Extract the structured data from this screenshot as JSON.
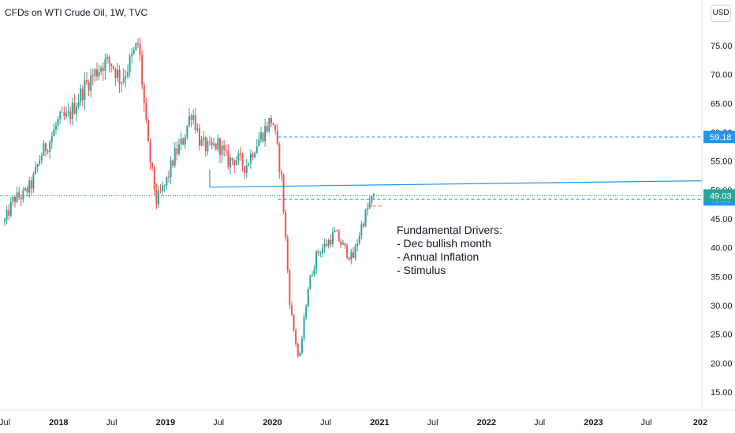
{
  "header": {
    "title": "CFDs on WTI Crude Oil, 1W, TVC",
    "currency": "USD"
  },
  "annotation": {
    "heading": "Fundamental Drivers:",
    "lines": [
      "- Dec bullish month",
      "- Annual Inflation",
      "- Stimulus"
    ]
  },
  "chart_data": {
    "type": "candlestick",
    "title": "CFDs on WTI Crude Oil, 1W, TVC",
    "ylim": [
      12,
      79
    ],
    "y_ticks": [
      15,
      20,
      25,
      30,
      35,
      40,
      45,
      50,
      55,
      60,
      65,
      70,
      75
    ],
    "y_tick_labels": [
      "15.00",
      "20.00",
      "25.00",
      "30.00",
      "35.00",
      "40.00",
      "45.00",
      "50.00",
      "55.00",
      "60.00",
      "65.00",
      "70.00",
      "75.00"
    ],
    "x_ticks": [
      {
        "label": "Jul",
        "date": "2017-07-01",
        "year": false
      },
      {
        "label": "2018",
        "date": "2018-01-01",
        "year": true
      },
      {
        "label": "Jul",
        "date": "2018-07-01",
        "year": false
      },
      {
        "label": "2019",
        "date": "2019-01-01",
        "year": true
      },
      {
        "label": "Jul",
        "date": "2019-07-01",
        "year": false
      },
      {
        "label": "2020",
        "date": "2020-01-01",
        "year": true
      },
      {
        "label": "Jul",
        "date": "2020-07-01",
        "year": false
      },
      {
        "label": "2021",
        "date": "2021-01-01",
        "year": true
      },
      {
        "label": "Jul",
        "date": "2021-07-01",
        "year": false
      },
      {
        "label": "2022",
        "date": "2022-01-01",
        "year": true
      },
      {
        "label": "Jul",
        "date": "2022-07-01",
        "year": false
      },
      {
        "label": "2023",
        "date": "2023-01-01",
        "year": true
      },
      {
        "label": "Jul",
        "date": "2023-07-01",
        "year": false
      },
      {
        "label": "202",
        "date": "2024-01-01",
        "year": true
      }
    ],
    "x_range": [
      "2017-07-01",
      "2024-01-01"
    ],
    "price_points": [
      [
        "2017-07-01",
        44.5
      ],
      [
        "2017-08-01",
        48.5
      ],
      [
        "2017-09-01",
        49.0
      ],
      [
        "2017-10-01",
        51.0
      ],
      [
        "2017-11-01",
        56.0
      ],
      [
        "2017-12-01",
        58.5
      ],
      [
        "2018-01-01",
        62.0
      ],
      [
        "2018-02-01",
        62.5
      ],
      [
        "2018-03-01",
        65.0
      ],
      [
        "2018-04-01",
        68.0
      ],
      [
        "2018-05-01",
        70.0
      ],
      [
        "2018-06-01",
        72.0
      ],
      [
        "2018-07-01",
        72.0
      ],
      [
        "2018-08-01",
        69.0
      ],
      [
        "2018-09-01",
        72.0
      ],
      [
        "2018-10-01",
        75.5
      ],
      [
        "2018-11-01",
        58.0
      ],
      [
        "2018-12-01",
        48.0
      ],
      [
        "2019-01-01",
        51.0
      ],
      [
        "2019-02-01",
        56.0
      ],
      [
        "2019-03-01",
        58.5
      ],
      [
        "2019-04-01",
        64.0
      ],
      [
        "2019-05-01",
        58.0
      ],
      [
        "2019-06-01",
        57.0
      ],
      [
        "2019-07-01",
        58.0
      ],
      [
        "2019-08-01",
        55.0
      ],
      [
        "2019-09-01",
        55.5
      ],
      [
        "2019-10-01",
        54.0
      ],
      [
        "2019-11-01",
        57.5
      ],
      [
        "2019-12-01",
        60.0
      ],
      [
        "2020-01-01",
        62.5
      ],
      [
        "2020-02-01",
        52.0
      ],
      [
        "2020-03-01",
        30.0
      ],
      [
        "2020-04-01",
        20.0
      ],
      [
        "2020-05-01",
        33.0
      ],
      [
        "2020-06-01",
        39.0
      ],
      [
        "2020-07-01",
        40.5
      ],
      [
        "2020-08-01",
        42.5
      ],
      [
        "2020-09-01",
        40.0
      ],
      [
        "2020-10-01",
        38.0
      ],
      [
        "2020-11-01",
        44.0
      ],
      [
        "2020-12-01",
        48.0
      ],
      [
        "2020-12-18",
        49.03
      ]
    ],
    "bullish_color": "#26a69a",
    "bearish_color": "#ef5350",
    "last_price": 49.03,
    "levels": [
      {
        "label": "59.18",
        "value": 59.18,
        "color": "#2196f3",
        "style": "dashed"
      },
      {
        "label": "48.39",
        "value": 48.39,
        "color": "#2196f3",
        "style": "dashed"
      },
      {
        "label": "49.03",
        "value": 49.03,
        "color": "#26a69a",
        "style": "dotted"
      }
    ],
    "trendline": {
      "start": [
        "2019-06-01",
        50.5
      ],
      "end": [
        "2024-01-01",
        51.6
      ],
      "color": "#2196f3"
    }
  }
}
